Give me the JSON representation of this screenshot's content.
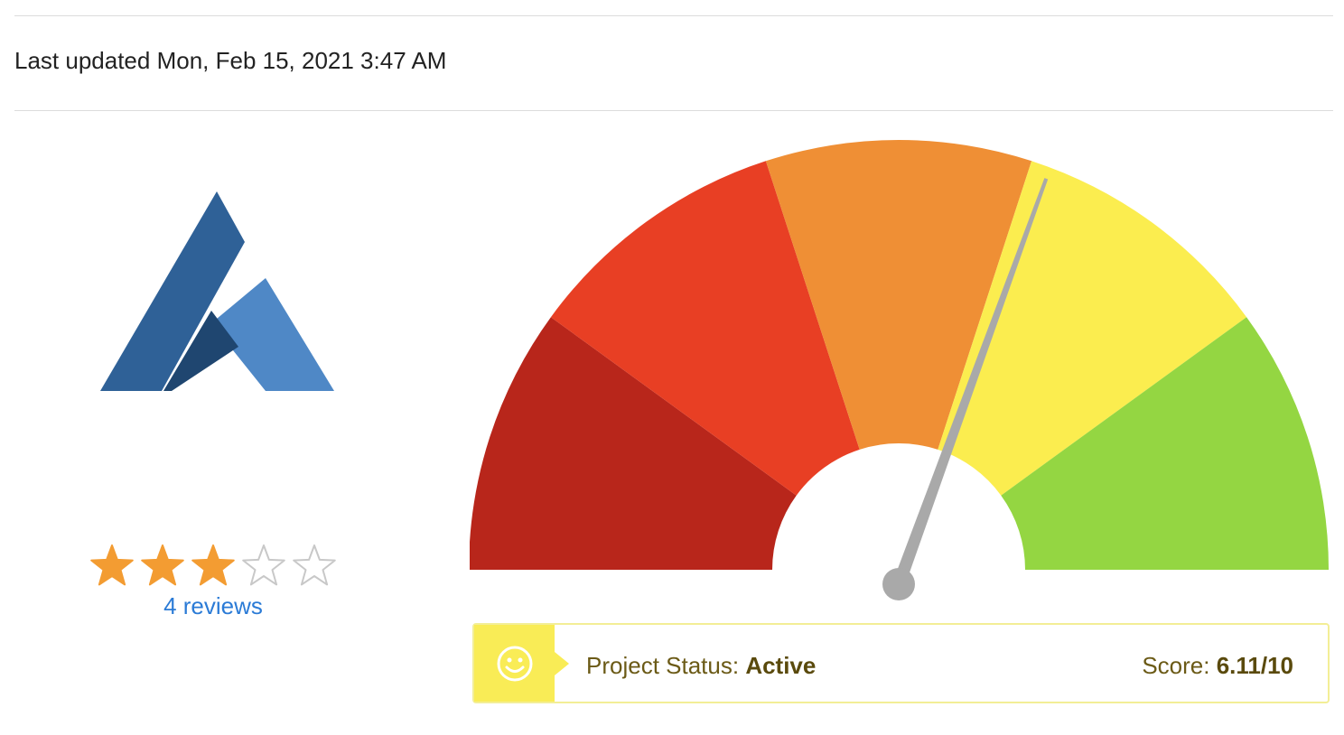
{
  "header": {
    "last_updated": "Last updated Mon, Feb 15, 2021 3:47 AM"
  },
  "logo": {
    "icon": "ardor-logo-icon"
  },
  "rating": {
    "stars_filled": 3,
    "stars_total": 5,
    "reviews_label": "4 reviews",
    "star_color": "#f39c32"
  },
  "gauge": {
    "min": 0,
    "max": 10,
    "value": 6.11,
    "segments": [
      {
        "color": "#b8261b"
      },
      {
        "color": "#e83f24"
      },
      {
        "color": "#ef8f35"
      },
      {
        "color": "#fbed4f"
      },
      {
        "color": "#94d642"
      }
    ],
    "needle_color": "#a9a9a9"
  },
  "status": {
    "icon": "smiley-icon",
    "label": "Project Status: ",
    "value": "Active",
    "score_label": "Score: ",
    "score_value": "6.11/10",
    "accent": "#f9ec56"
  }
}
